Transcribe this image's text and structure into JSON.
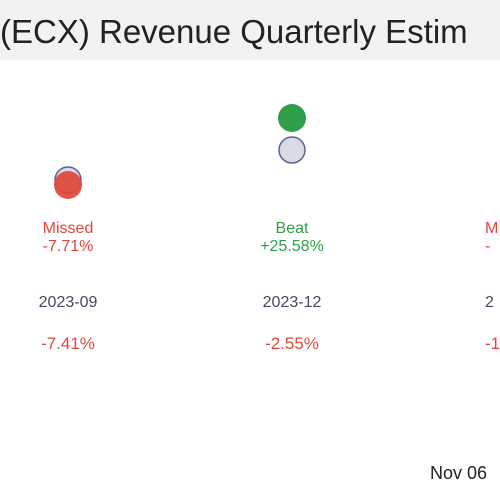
{
  "title": "(ECX) Revenue Quarterly Estim",
  "date_stamp": "Nov 06",
  "colors": {
    "beat": "#2e9e48",
    "missed": "#e0473a",
    "estimate_fill": "#d9dbe8",
    "estimate_stroke": "#5a6490",
    "period_text": "#444a66"
  },
  "chart_data": {
    "type": "scatter",
    "title": "(ECX) Revenue Quarterly Estim",
    "quarters": [
      {
        "period": "2023-09",
        "result": "Missed",
        "surprise": "-7.71%",
        "change": "-7.41%"
      },
      {
        "period": "2023-12",
        "result": "Beat",
        "surprise": "+25.58%",
        "change": "-2.55%"
      },
      {
        "period": "2",
        "result": "M",
        "surprise": "-",
        "change": "-1"
      }
    ]
  }
}
